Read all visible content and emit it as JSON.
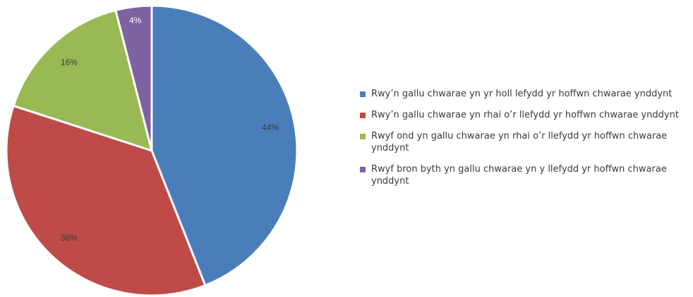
{
  "chart_data": {
    "type": "pie",
    "title": "",
    "categories": [
      "Rwy’n gallu chwarae yn yr holl lefydd yr hoffwn chwarae ynddynt",
      "Rwy’n gallu chwarae yn rhai o’r llefydd yr hoffwn chwarae ynddynt",
      "Rwyf ond yn gallu chwarae yn rhai o’r llefydd yr hoffwn chwarae ynddynt",
      "Rwyf bron byth yn gallu chwarae yn y llefydd yr hoffwn chwarae ynddynt"
    ],
    "values": [
      44,
      36,
      16,
      4
    ],
    "value_labels": [
      "44%",
      "36%",
      "16%",
      "4%"
    ],
    "colors": [
      "#4a7ebb",
      "#be4b48",
      "#98b954",
      "#7e62a1"
    ],
    "legend_position": "right",
    "start_angle": "12 o'clock, clockwise"
  }
}
